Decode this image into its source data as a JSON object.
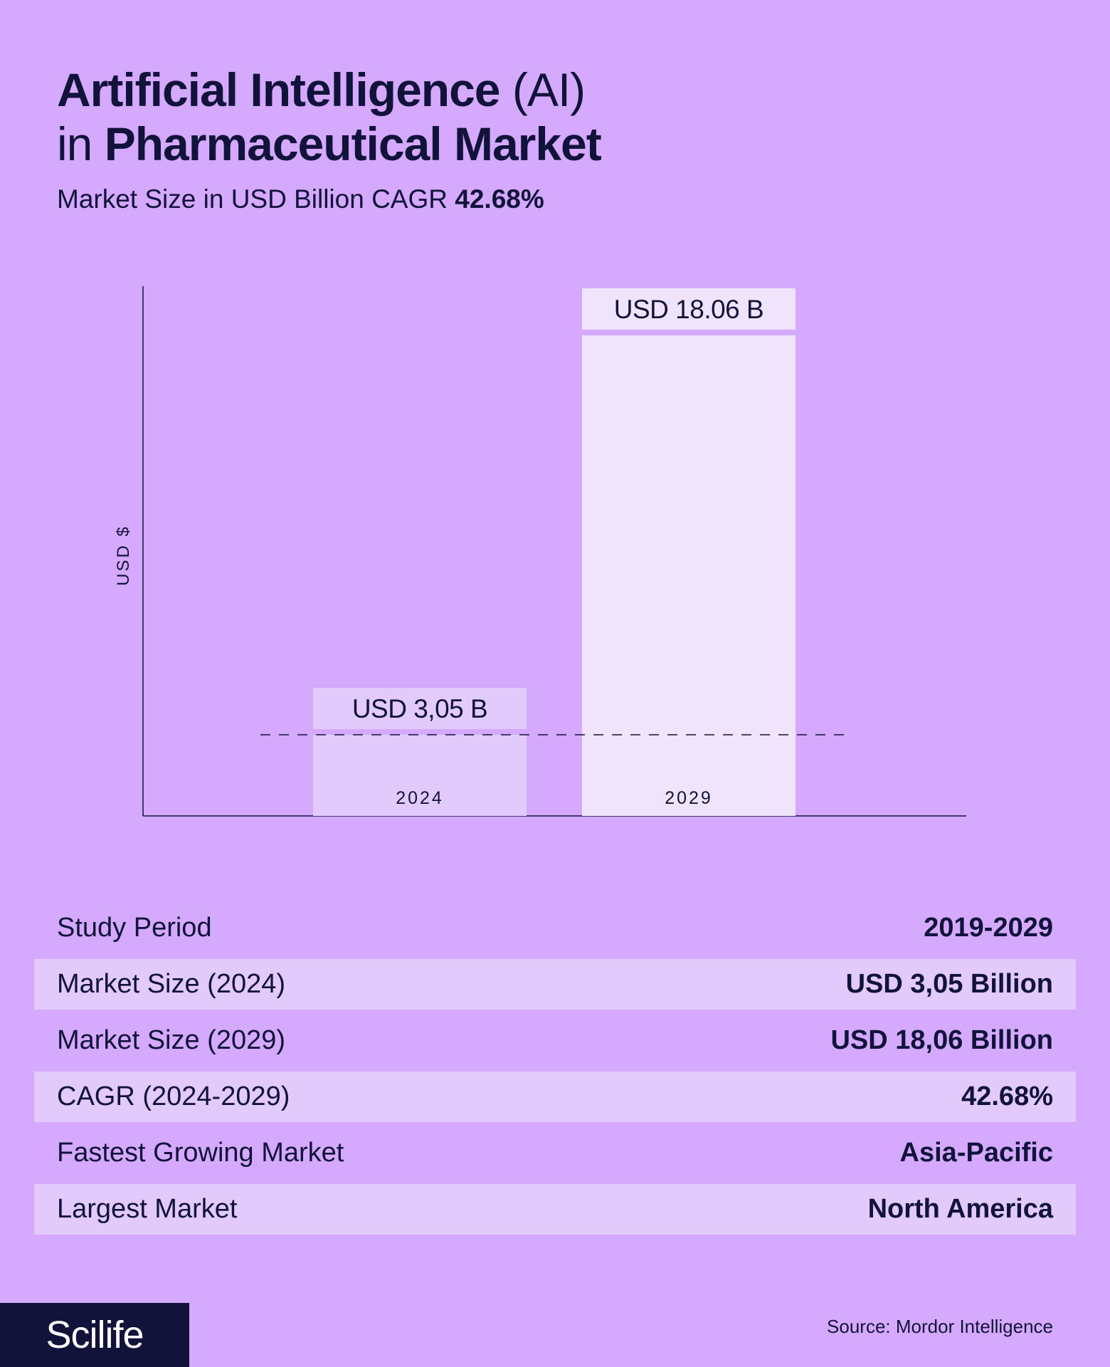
{
  "title": {
    "line1_bold": "Artificial Intelligence",
    "line1_light": " (AI)",
    "line2_light": "in ",
    "line2_bold": "Pharmaceutical Market"
  },
  "subtitle": {
    "text": "Market Size in USD Billion CAGR ",
    "value": "42.68%"
  },
  "chart_data": {
    "type": "bar",
    "categories": [
      "2024",
      "2029"
    ],
    "values": [
      3.05,
      18.06
    ],
    "data_labels": [
      "USD 3,05 B",
      "USD 18.06 B"
    ],
    "ylabel": "USD $",
    "colors": [
      "#e3cafd",
      "#f0e4fc"
    ]
  },
  "stats": [
    {
      "label": "Study Period",
      "value": "2019-2029"
    },
    {
      "label": "Market Size (2024)",
      "value": "USD 3,05 Billion"
    },
    {
      "label": "Market Size (2029)",
      "value": "USD 18,06 Billion"
    },
    {
      "label": "CAGR (2024-2029)",
      "value": "42.68%"
    },
    {
      "label": "Fastest Growing Market",
      "value": "Asia-Pacific"
    },
    {
      "label": "Largest Market",
      "value": "North America"
    }
  ],
  "logo": "Scilife",
  "source": "Source: Mordor Intelligence"
}
